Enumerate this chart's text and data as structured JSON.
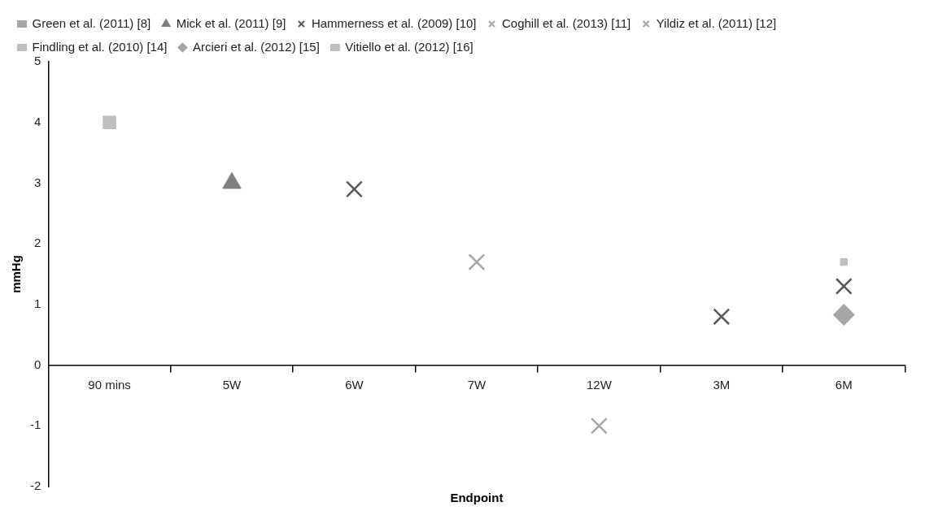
{
  "chart_data": {
    "type": "scatter",
    "xlabel": "Endpoint",
    "ylabel": "mmHg",
    "categories": [
      "90 mins",
      "5W",
      "6W",
      "7W",
      "12W",
      "3M",
      "6M"
    ],
    "ylim": [
      -2,
      5
    ],
    "yticks": [
      -2,
      -1,
      0,
      1,
      2,
      3,
      4,
      5
    ],
    "grid": false,
    "legend": "top",
    "series": [
      {
        "name": "Green et al. (2011) [8]",
        "color": "#a6a6a6",
        "marker": "square",
        "values": [
          null,
          null,
          null,
          null,
          null,
          null,
          null
        ]
      },
      {
        "name": "Mick et al. (2011) [9]",
        "color": "#808080",
        "marker": "triangle",
        "values": [
          null,
          3,
          null,
          null,
          null,
          null,
          null
        ]
      },
      {
        "name": "Hammerness et al. (2009) [10]",
        "color": "#595959",
        "marker": "cross",
        "values": [
          null,
          null,
          2.9,
          null,
          null,
          0.8,
          1.3
        ]
      },
      {
        "name": "Coghill et al. (2013) [11]",
        "color": "#a6a6a6",
        "marker": "cross",
        "values": [
          null,
          null,
          null,
          1.7,
          null,
          null,
          null
        ]
      },
      {
        "name": "Yildiz et al. (2011) [12]",
        "color": "#a6a6a6",
        "marker": "cross",
        "values": [
          null,
          null,
          null,
          null,
          -1,
          null,
          null
        ]
      },
      {
        "name": "Findling et al. (2010) [14]",
        "color": "#bfbfbf",
        "marker": "square",
        "values": [
          null,
          null,
          null,
          null,
          null,
          null,
          1.7
        ]
      },
      {
        "name": "Arcieri et al. (2012) [15]",
        "color": "#a6a6a6",
        "marker": "diamond",
        "values": [
          null,
          null,
          null,
          null,
          null,
          null,
          0.83
        ]
      },
      {
        "name": "Vitiello et al. (2012) [16]",
        "color": "#bfbfbf",
        "marker": "square",
        "values": [
          4,
          null,
          null,
          null,
          null,
          null,
          null
        ]
      }
    ]
  }
}
